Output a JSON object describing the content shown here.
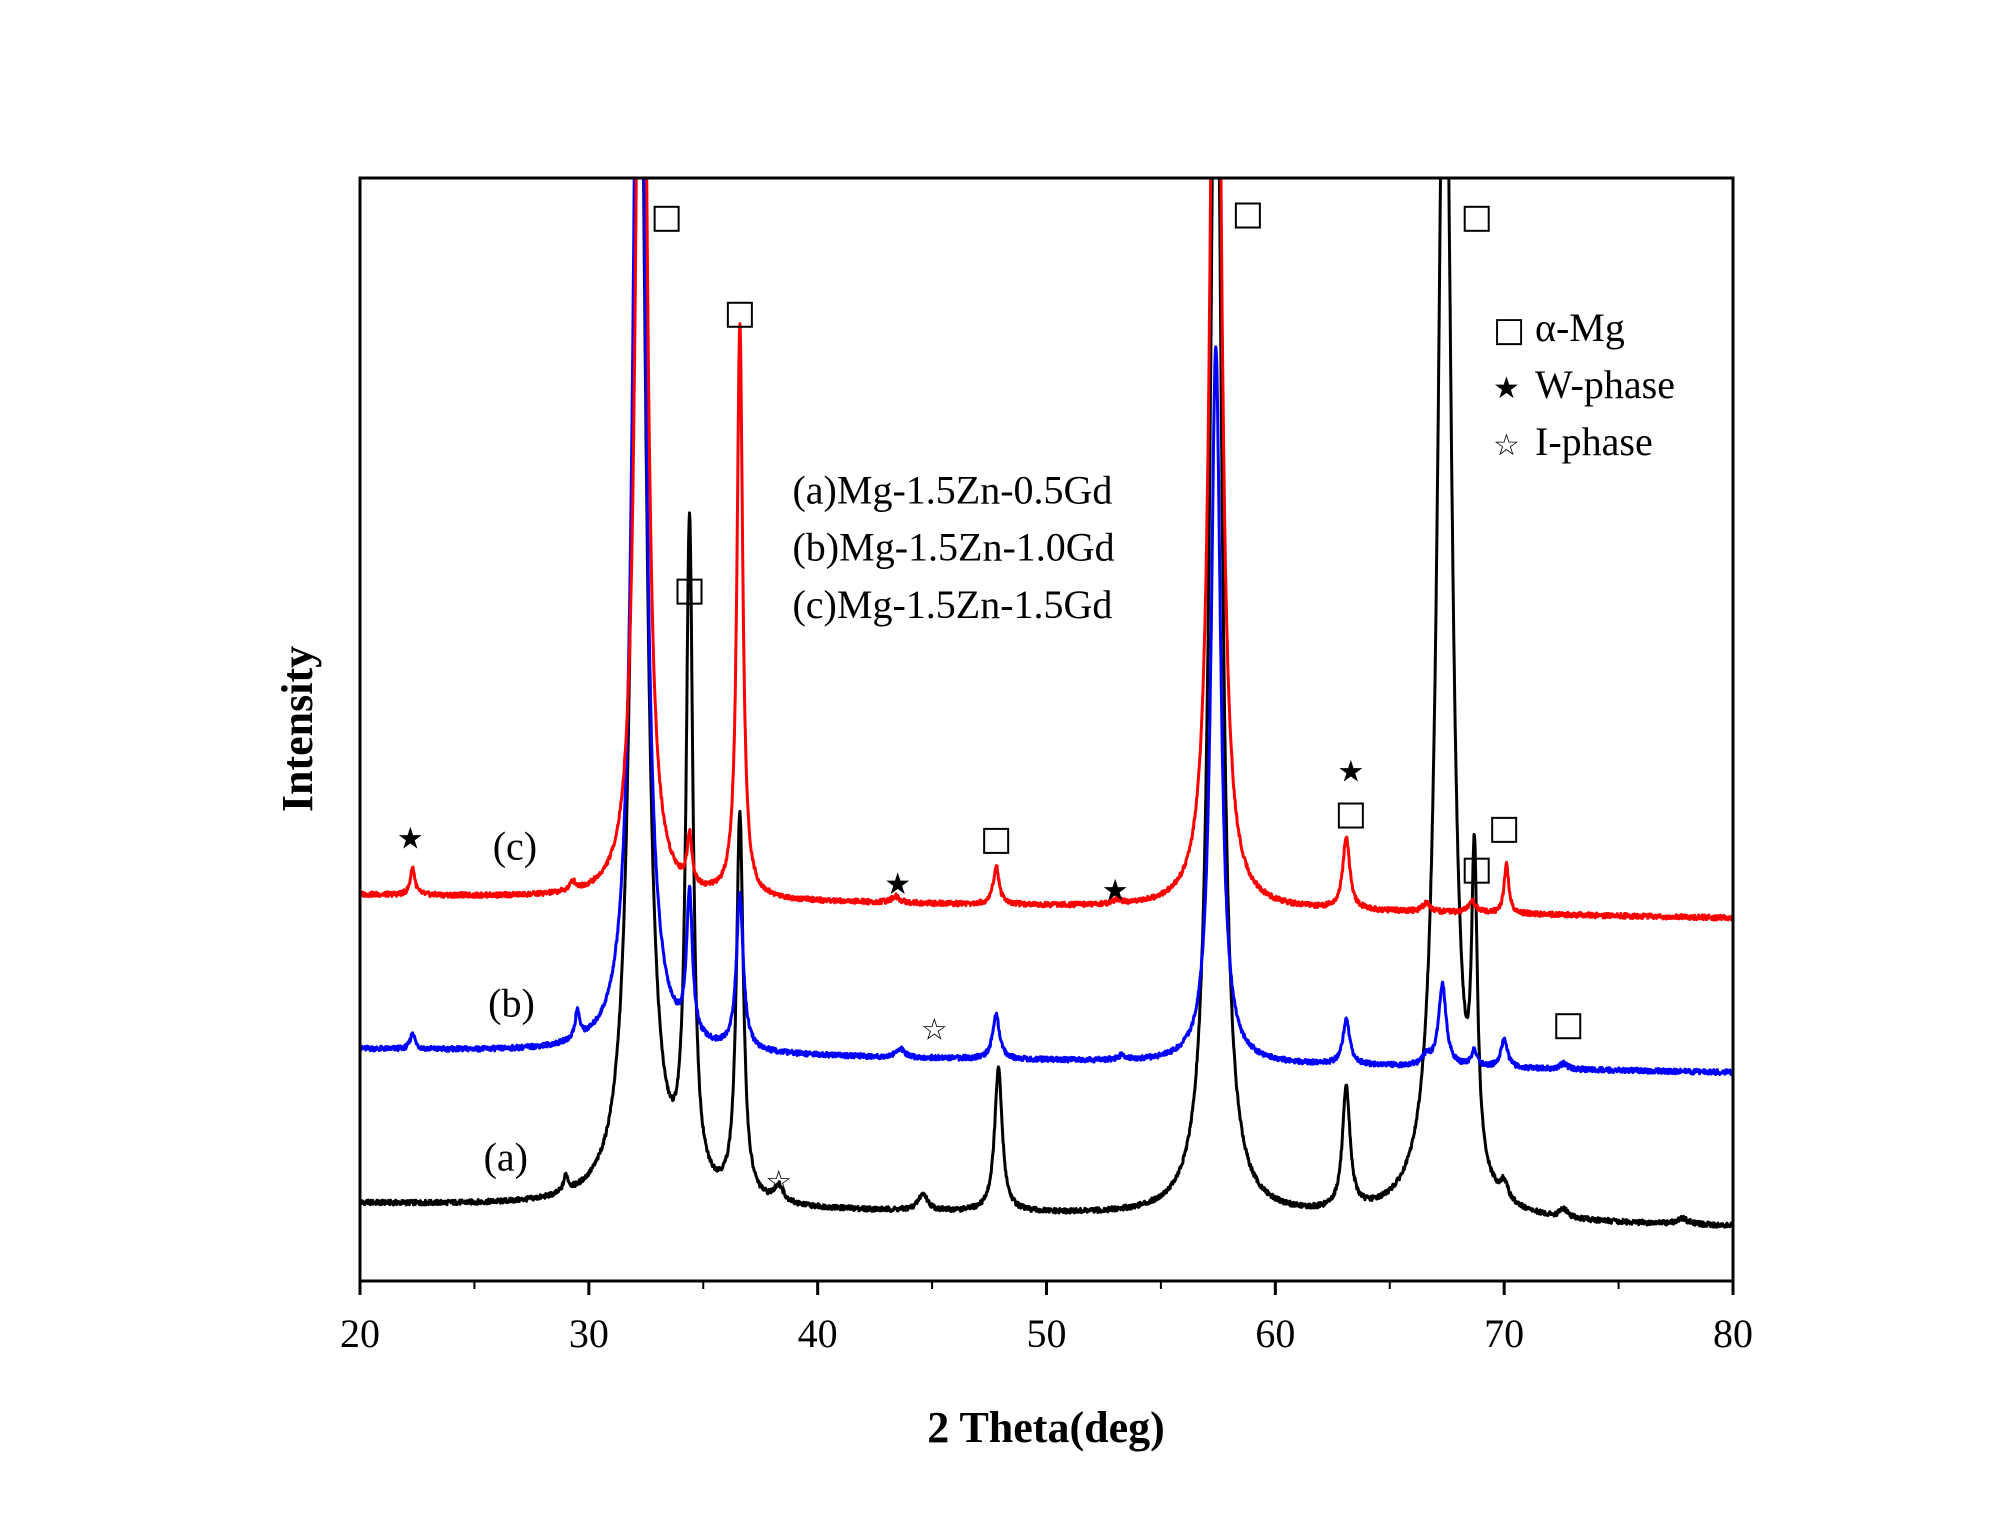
{
  "chart_data": {
    "type": "line",
    "title": "",
    "xlabel": "2 Theta(deg)",
    "ylabel": "Intensity",
    "xlim": [
      20,
      80
    ],
    "ylim": [
      0,
      100
    ],
    "xticks": [
      20,
      30,
      40,
      50,
      60,
      70,
      80
    ],
    "series": [
      {
        "name": "(a)",
        "color": "#000000",
        "baseline": 7.0,
        "slope": -0.035,
        "peaks": [
          [
            29.0,
            1.5,
            0.12
          ],
          [
            32.2,
            120,
            0.35
          ],
          [
            34.4,
            60,
            0.18
          ],
          [
            36.6,
            35,
            0.18
          ],
          [
            38.3,
            1.5,
            0.25
          ],
          [
            44.6,
            1.5,
            0.25
          ],
          [
            47.9,
            13,
            0.2
          ],
          [
            57.4,
            120,
            0.3
          ],
          [
            63.1,
            11,
            0.2
          ],
          [
            67.4,
            120,
            0.35
          ],
          [
            68.7,
            27,
            0.15
          ],
          [
            70.0,
            1.5,
            0.2
          ],
          [
            72.6,
            0.8,
            0.2
          ],
          [
            77.8,
            0.5,
            0.3
          ]
        ]
      },
      {
        "name": "(b)",
        "color": "#0000ff",
        "baseline": 21.0,
        "slope": -0.035,
        "peaks": [
          [
            22.3,
            1.5,
            0.12
          ],
          [
            29.5,
            2.5,
            0.12
          ],
          [
            32.2,
            120,
            0.3
          ],
          [
            34.4,
            13,
            0.15
          ],
          [
            36.6,
            14,
            0.18
          ],
          [
            43.6,
            0.8,
            0.2
          ],
          [
            47.8,
            4,
            0.18
          ],
          [
            53.3,
            0.4,
            0.2
          ],
          [
            57.4,
            65,
            0.25
          ],
          [
            63.1,
            4,
            0.18
          ],
          [
            66.6,
            0.8,
            0.2
          ],
          [
            67.3,
            7.5,
            0.2
          ],
          [
            68.7,
            1.5,
            0.15
          ],
          [
            70.0,
            2.5,
            0.18
          ],
          [
            72.6,
            0.5,
            0.2
          ]
        ]
      },
      {
        "name": "(c)",
        "color": "#ff0000",
        "baseline": 35.0,
        "slope": -0.035,
        "peaks": [
          [
            22.3,
            2.5,
            0.12
          ],
          [
            29.3,
            0.8,
            0.15
          ],
          [
            32.3,
            120,
            0.25
          ],
          [
            34.4,
            4.5,
            0.12
          ],
          [
            36.6,
            52,
            0.15
          ],
          [
            43.4,
            0.6,
            0.2
          ],
          [
            47.8,
            3.5,
            0.15
          ],
          [
            53.1,
            0.4,
            0.2
          ],
          [
            57.4,
            120,
            0.25
          ],
          [
            63.1,
            6.5,
            0.18
          ],
          [
            66.6,
            0.8,
            0.2
          ],
          [
            68.6,
            1,
            0.2
          ],
          [
            70.1,
            4.5,
            0.12
          ]
        ]
      }
    ],
    "curve_labels": [
      {
        "text": "(a)",
        "x": 25.4,
        "y": 10
      },
      {
        "text": "(b)",
        "x": 25.6,
        "y": 24
      },
      {
        "text": "(c)",
        "x": 25.8,
        "y": 38.2
      }
    ],
    "annotations": {
      "text_block": [
        "(a)Mg-1.5Zn-0.5Gd",
        "(b)Mg-1.5Zn-1.0Gd",
        "(c)Mg-1.5Zn-1.5Gd"
      ],
      "text_block_anchor": {
        "x": 38.9,
        "y": 70.5,
        "line_step": 5.2
      },
      "alpha_mg_markers": [
        [
          33.4,
          96.3
        ],
        [
          36.6,
          87.6
        ],
        [
          34.4,
          62.5
        ],
        [
          58.8,
          96.6
        ],
        [
          68.8,
          96.3
        ],
        [
          47.8,
          39.9
        ],
        [
          63.3,
          42.2
        ],
        [
          68.8,
          37.2
        ],
        [
          70.0,
          40.9
        ],
        [
          72.8,
          23.1
        ]
      ],
      "w_phase_markers": [
        [
          22.2,
          40.2
        ],
        [
          43.5,
          36.1
        ],
        [
          53.0,
          35.5
        ],
        [
          63.3,
          46.3
        ]
      ],
      "i_phase_markers": [
        [
          38.3,
          9.1
        ],
        [
          45.1,
          22.9
        ]
      ]
    },
    "legend": {
      "position": "top-right",
      "entries": [
        {
          "symbol": "□",
          "label": "α-Mg"
        },
        {
          "symbol": "★",
          "label": "W-phase"
        },
        {
          "symbol": "☆",
          "label": "I-phase"
        }
      ]
    }
  }
}
